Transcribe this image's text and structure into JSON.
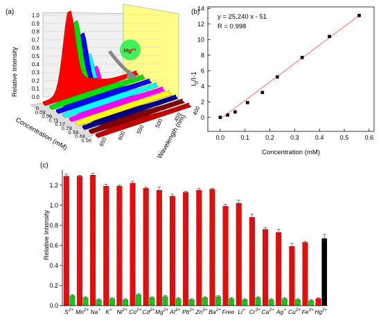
{
  "panels": {
    "a": {
      "label": "(a)",
      "zlabel": "Relative Intensity",
      "ztick_labels": [
        "0.0",
        "0.1",
        "0.2",
        "0.3",
        "0.4",
        "0.5",
        "0.6",
        "0.7",
        "0.8",
        "0.9",
        "1.0"
      ],
      "concentration_label": "Concentration (mM)",
      "concentration_ticks": [
        "0",
        "0.03",
        "0.06",
        "0.11",
        "0.17",
        "0.23",
        "0.33",
        "0.44",
        "0.56"
      ],
      "wavelength_label": "Wavelength (nm)",
      "wavelength_ticks": [
        "400",
        "450",
        "500",
        "550",
        "600",
        "650"
      ],
      "hg_badge": "Hg²⁺",
      "spectra": [
        {
          "conc": "0",
          "peak": 1.0,
          "color": "#ff0000"
        },
        {
          "conc": "0.03",
          "peak": 0.93,
          "color": "#00dd00"
        },
        {
          "conc": "0.06",
          "peak": 0.83,
          "color": "#0000ff"
        },
        {
          "conc": "0.11",
          "peak": 0.62,
          "color": "#00ffff"
        },
        {
          "conc": "0.17",
          "peak": 0.52,
          "color": "#ff00ff"
        },
        {
          "conc": "0.23",
          "peak": 0.39,
          "color": "#ffff00"
        },
        {
          "conc": "0.33",
          "peak": 0.27,
          "color": "#000080"
        },
        {
          "conc": "0.44",
          "peak": 0.22,
          "color": "#800000"
        },
        {
          "conc": "0.56",
          "peak": 0.18,
          "color": "#c00000"
        }
      ]
    },
    "b": {
      "label": "(b)",
      "xlabel": "Concentration (mM)",
      "equation": "y = 25,240 x - 51",
      "r_value": "R = 0.998",
      "ylabel_main": "I",
      "ylabel_sub": "0",
      "ylabel_rest": "/I-1"
    },
    "c": {
      "label": "(c)",
      "ylabel": "Relative Intensity"
    }
  },
  "chart_data": [
    {
      "type": "scatter",
      "title": "",
      "xlabel": "Concentration (mM)",
      "ylabel": "I0/I-1",
      "xlim": [
        -0.05,
        0.62
      ],
      "ylim": [
        -1.8,
        14.2
      ],
      "xticks": [
        0.0,
        0.1,
        0.2,
        0.3,
        0.4,
        0.5,
        0.6
      ],
      "yticks": [
        0,
        2,
        4,
        6,
        8,
        10,
        12,
        14
      ],
      "points": {
        "x": [
          0.0,
          0.03,
          0.06,
          0.11,
          0.17,
          0.23,
          0.33,
          0.44,
          0.56
        ],
        "y": [
          0.0,
          0.3,
          0.7,
          1.9,
          3.2,
          5.2,
          7.7,
          10.4,
          13.1
        ]
      },
      "fit_line": {
        "x": [
          0.0,
          0.56
        ],
        "y": [
          -0.2,
          13.1
        ],
        "color": "#ff6060"
      },
      "marker_color": "#000000",
      "grid": false
    },
    {
      "type": "bar",
      "title": "",
      "xlabel": "",
      "ylabel": "Relative Intensity",
      "ylim": [
        0.0,
        1.35
      ],
      "yticks": [
        0.0,
        0.2,
        0.4,
        0.6,
        0.8,
        1.0,
        1.2
      ],
      "categories": [
        {
          "base": "S",
          "sup": "2+"
        },
        {
          "base": "Mn",
          "sup": "2+"
        },
        {
          "base": "Na",
          "sup": "+"
        },
        {
          "base": "K",
          "sup": "+"
        },
        {
          "base": "Ni",
          "sup": "2+"
        },
        {
          "base": "Co",
          "sup": "2+"
        },
        {
          "base": "Cd",
          "sup": "2+"
        },
        {
          "base": "Mg",
          "sup": "2+"
        },
        {
          "base": "Al",
          "sup": "3+"
        },
        {
          "base": "Pb",
          "sup": "2+"
        },
        {
          "base": "Zn",
          "sup": "2+"
        },
        {
          "base": "Ba",
          "sup": "2+"
        },
        {
          "base": "Free",
          "sup": ""
        },
        {
          "base": "Li",
          "sup": "+"
        },
        {
          "base": "Cr",
          "sup": "3+"
        },
        {
          "base": "Ca",
          "sup": "2+"
        },
        {
          "base": "Ag",
          "sup": "+"
        },
        {
          "base": "Cu",
          "sup": "2+"
        },
        {
          "base": "Fe",
          "sup": "3+"
        },
        {
          "base": "Hg",
          "sup": "2+"
        }
      ],
      "series": [
        {
          "color": "#ee1111",
          "values": [
            1.29,
            1.29,
            1.3,
            1.19,
            1.19,
            1.22,
            1.17,
            1.15,
            1.09,
            1.13,
            1.15,
            1.16,
            0.99,
            1.02,
            0.88,
            0.76,
            0.73,
            0.59,
            0.63,
            0.07
          ],
          "errors": [
            0.02,
            0.01,
            0.02,
            0.02,
            0.01,
            0.02,
            0.01,
            0.03,
            0.02,
            0.01,
            0.02,
            0.01,
            0.02,
            0.03,
            0.03,
            0.02,
            0.03,
            0.03,
            0.01,
            0.01
          ]
        },
        {
          "color": "#22cc22",
          "values": [
            0.1,
            0.08,
            0.06,
            0.07,
            0.06,
            0.11,
            0.08,
            0.09,
            0.07,
            0.06,
            0.08,
            0.09,
            0.07,
            0.06,
            0.08,
            0.06,
            0.07,
            0.06,
            0.05,
            null
          ],
          "errors": [
            0.01,
            0.01,
            0.01,
            0.01,
            0.01,
            0.01,
            0.01,
            0.01,
            0.01,
            0.01,
            0.01,
            0.01,
            0.01,
            0.01,
            0.01,
            0.01,
            0.01,
            0.01,
            0.01,
            null
          ]
        }
      ],
      "highlight": {
        "category": "Hg2+",
        "value": 0.67,
        "error": 0.04,
        "color": "#000000"
      },
      "grid": false,
      "legend": "none"
    }
  ]
}
